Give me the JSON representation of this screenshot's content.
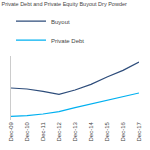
{
  "chart_data": {
    "type": "line",
    "title": "Private Debt and Private Equity Buyout Dry Powder",
    "categories": [
      "Dec-09",
      "Dec-10",
      "Dec-11",
      "Dec-12",
      "Dec-13",
      "Dec-14",
      "Dec-15",
      "Dec-16",
      "Dec-17"
    ],
    "series": [
      {
        "name": "Buyout",
        "color": "#2e4d7b",
        "values": [
          160,
          155,
          143,
          128,
          150,
          178,
          215,
          248,
          290
        ]
      },
      {
        "name": "Private Debt",
        "color": "#00b0f0",
        "values": [
          18,
          22,
          30,
          42,
          62,
          80,
          98,
          115,
          135
        ]
      }
    ],
    "ylim": [
      0,
      320
    ],
    "grid": false,
    "legend": "upper left",
    "tick_labels": "x"
  }
}
